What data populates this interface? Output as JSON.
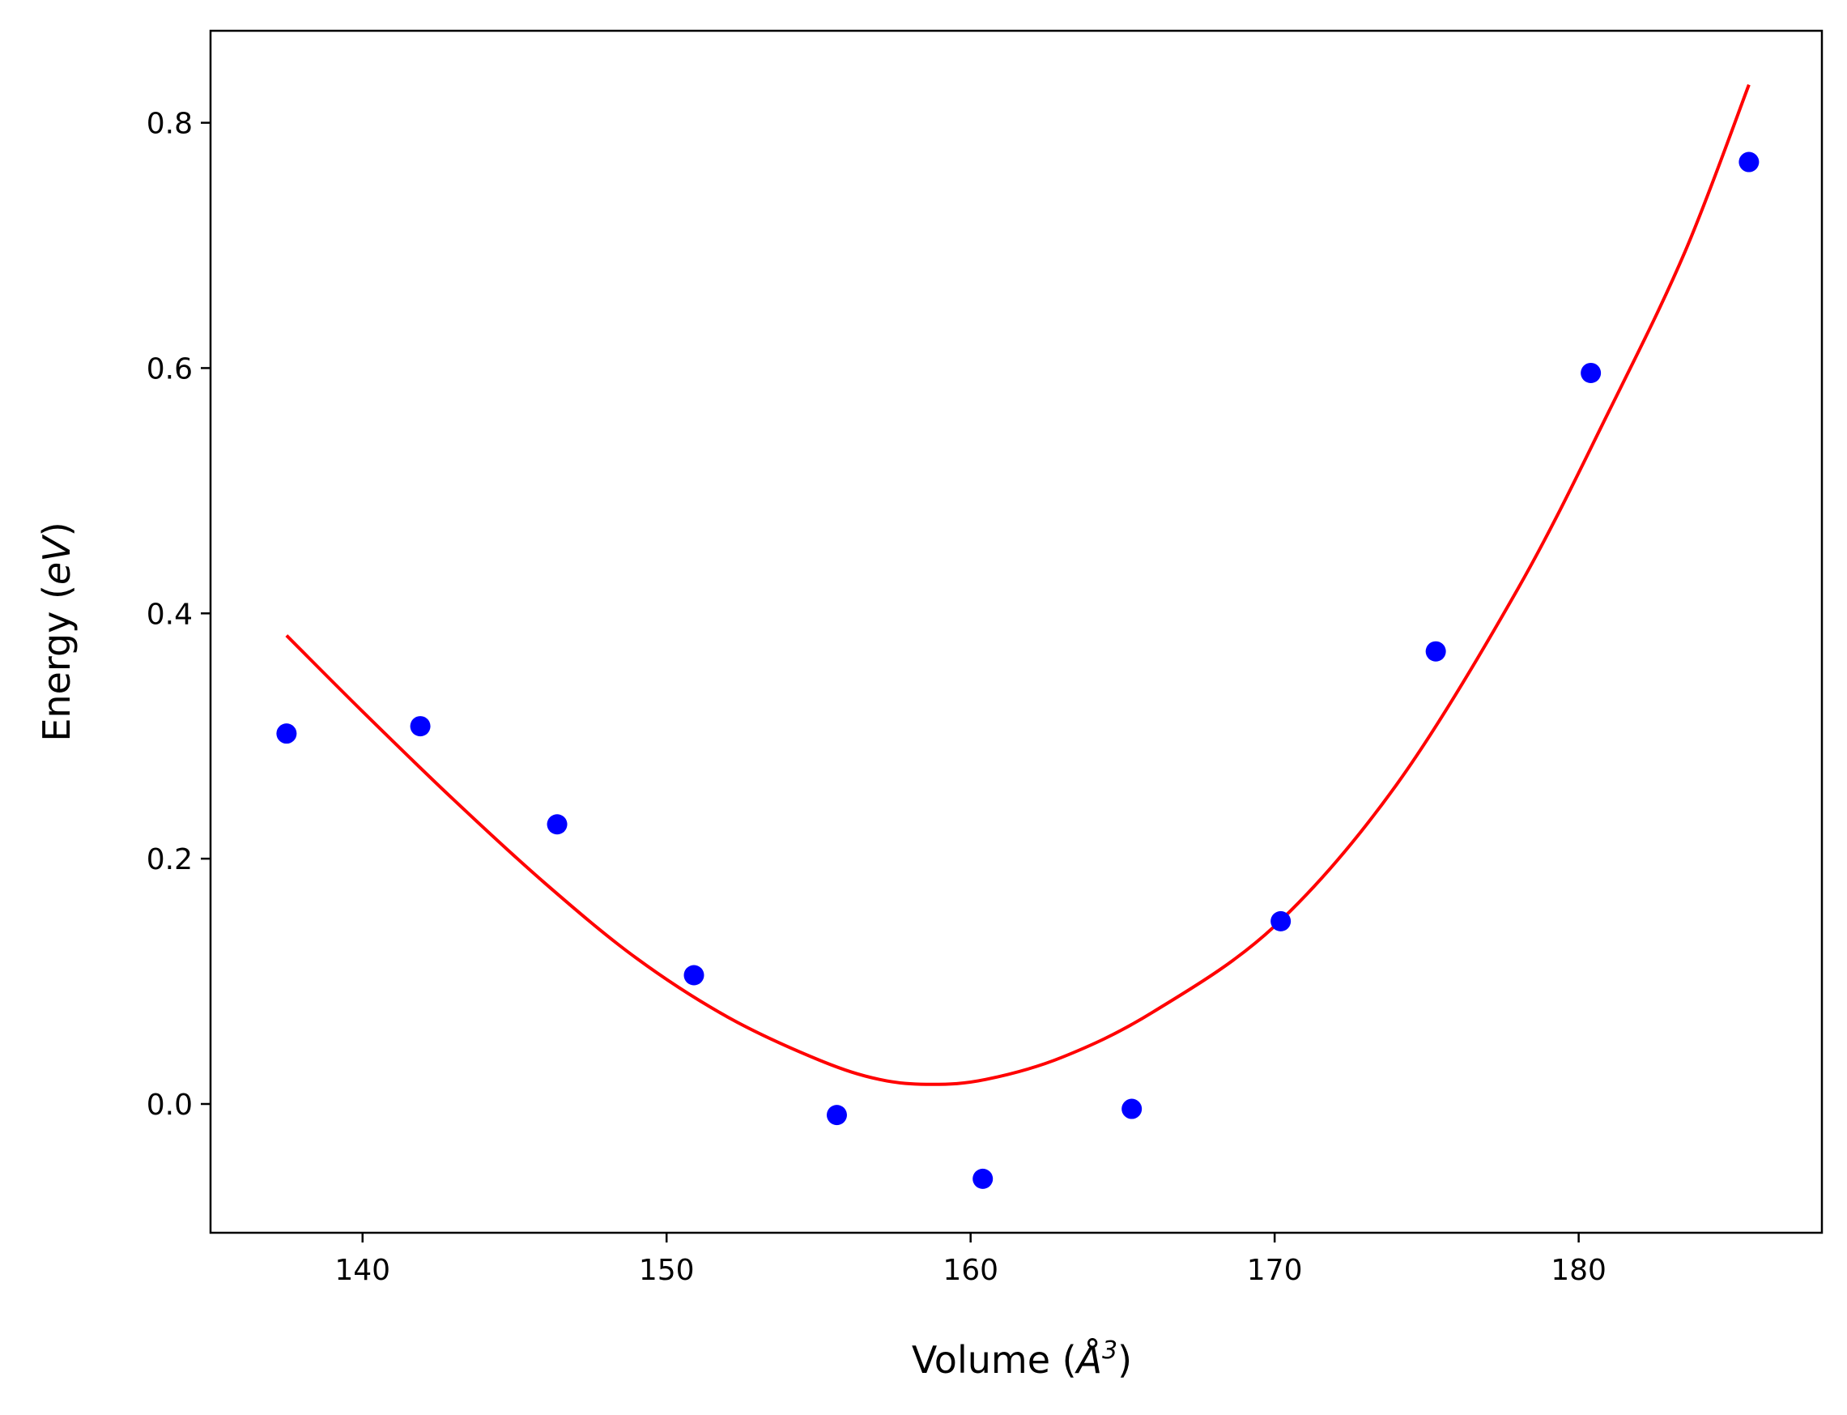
{
  "chart_data": {
    "type": "scatter",
    "xlabel": {
      "prefix": "Volume (",
      "symbol": "Å",
      "exponent": "3",
      "suffix": ")"
    },
    "ylabel": {
      "prefix": "Energy (",
      "unit": "eV",
      "suffix": ")"
    },
    "xlim": [
      135.0,
      188.0
    ],
    "ylim": [
      -0.105,
      0.875
    ],
    "xticks": [
      140,
      150,
      160,
      170,
      180
    ],
    "xtick_labels": [
      "140",
      "150",
      "160",
      "170",
      "180"
    ],
    "yticks": [
      0.0,
      0.2,
      0.4,
      0.6,
      0.8
    ],
    "ytick_labels": [
      "0.0",
      "0.2",
      "0.4",
      "0.6",
      "0.8"
    ],
    "grid": false,
    "series": [
      {
        "kind": "points",
        "color": "#0000ff",
        "x": [
          137.5,
          141.9,
          146.4,
          150.9,
          155.6,
          160.4,
          165.3,
          170.2,
          175.3,
          180.4,
          185.6
        ],
        "y": [
          0.302,
          0.308,
          0.228,
          0.105,
          -0.009,
          -0.061,
          -0.004,
          0.149,
          0.369,
          0.596,
          0.768
        ]
      },
      {
        "kind": "line",
        "color": "#ff0000",
        "x": [
          137.5,
          140.0,
          143.0,
          146.0,
          149.0,
          152.0,
          155.0,
          157.0,
          158.7,
          160.5,
          163.0,
          166.0,
          170.0,
          174.0,
          178.0,
          181.0,
          183.5,
          185.6
        ],
        "y": [
          0.382,
          0.32,
          0.248,
          0.18,
          0.119,
          0.071,
          0.036,
          0.02,
          0.016,
          0.02,
          0.038,
          0.075,
          0.145,
          0.26,
          0.42,
          0.565,
          0.695,
          0.831
        ]
      }
    ]
  }
}
